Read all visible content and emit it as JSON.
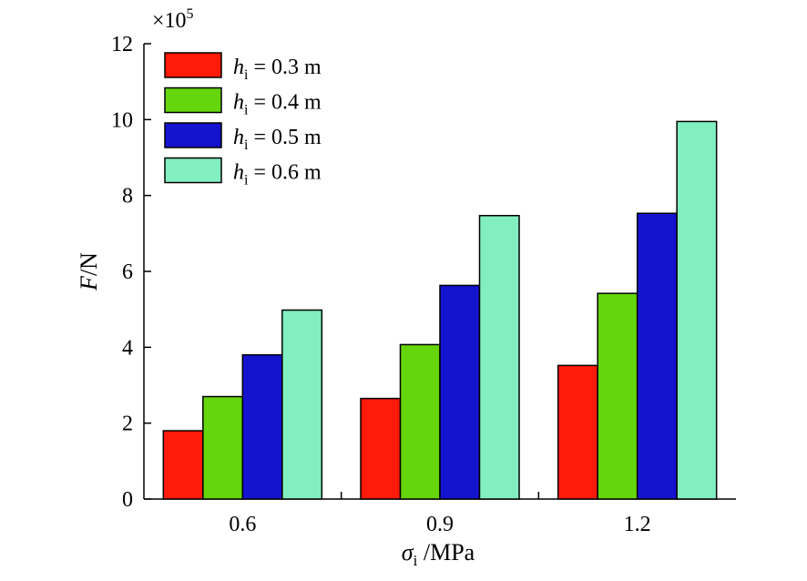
{
  "chart_data": {
    "type": "bar",
    "multiplier_base": "×10",
    "multiplier_exp": "5",
    "categories": [
      "0.6",
      "0.9",
      "1.2"
    ],
    "series": [
      {
        "name_sym": "h",
        "name_sub": "i",
        "name_rest": " = 0.3 m",
        "color": "#ff1a0a",
        "values": [
          1.8,
          2.65,
          3.52
        ]
      },
      {
        "name_sym": "h",
        "name_sub": "i",
        "name_rest": " = 0.4 m",
        "color": "#66d60c",
        "values": [
          2.7,
          4.07,
          5.42
        ]
      },
      {
        "name_sym": "h",
        "name_sub": "i",
        "name_rest": " = 0.5 m",
        "color": "#1414cf",
        "values": [
          3.8,
          5.63,
          7.53
        ]
      },
      {
        "name_sym": "h",
        "name_sub": "i",
        "name_rest": " = 0.6 m",
        "color": "#82efc0",
        "values": [
          4.98,
          7.47,
          9.95
        ]
      }
    ],
    "ylabel_sym": "F",
    "ylabel_rest": "/N",
    "xlabel_sym": "σ",
    "xlabel_sub": "i",
    "xlabel_rest": " /MPa",
    "ylim": [
      0,
      12
    ],
    "yticks": [
      "0",
      "2",
      "4",
      "6",
      "8",
      "10",
      "12"
    ],
    "grid": false,
    "legend_position": "top-left"
  }
}
